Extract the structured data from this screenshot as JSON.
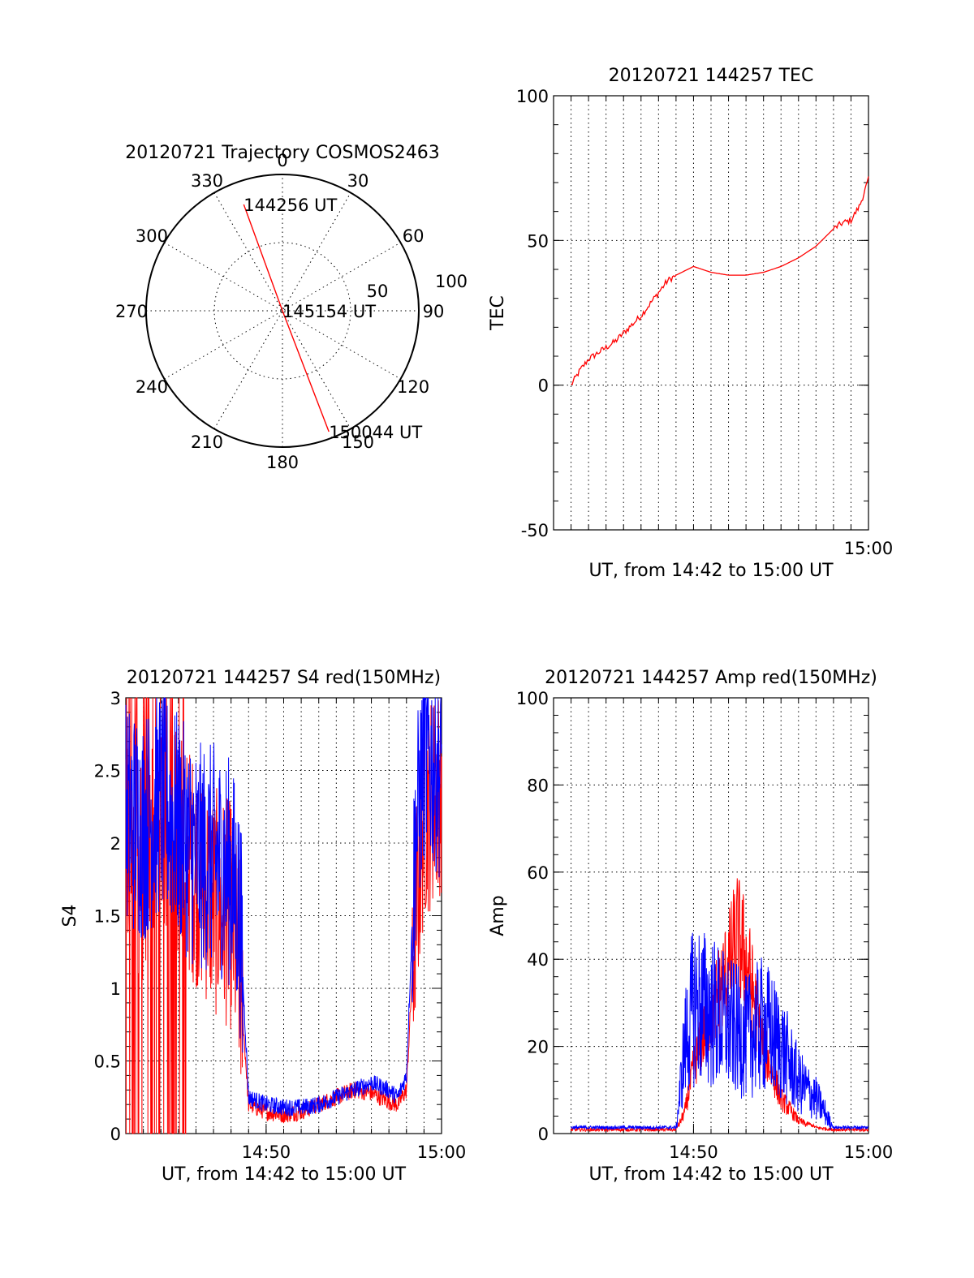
{
  "colors": {
    "red": "#ff0000",
    "blue": "#0000ff",
    "axis": "#000000"
  },
  "chart_data": [
    {
      "id": "trajectory",
      "type": "polar",
      "title": "20120721 Trajectory COSMOS2463",
      "angle_labels": [
        "0",
        "30",
        "60",
        "90",
        "120",
        "150",
        "180",
        "210",
        "240",
        "270",
        "300",
        "330"
      ],
      "radius_labels": [
        "50",
        "100"
      ],
      "rmax": 100,
      "track": {
        "color": "red",
        "points": [
          {
            "az": 340,
            "r": 83,
            "label": "144256 UT"
          },
          {
            "az": 0,
            "r": 0,
            "label": "145154 UT"
          },
          {
            "az": 159,
            "r": 95,
            "label": "150044 UT"
          }
        ]
      }
    },
    {
      "id": "tec",
      "type": "line",
      "title": "20120721 144257 TEC",
      "xlabel": "UT, from 14:42 to 15:00 UT",
      "ylabel": "TEC",
      "xlim": [
        "14:42",
        "15:00"
      ],
      "ylim": [
        -50,
        100
      ],
      "yticks": [
        "-50",
        "0",
        "50",
        "100"
      ],
      "xticks": [
        "15:00"
      ],
      "series": [
        {
          "color": "red",
          "x": [
            "14:43:00",
            "14:43:30",
            "14:44:00",
            "14:44:30",
            "14:45:00",
            "14:45:30",
            "14:46:00",
            "14:46:30",
            "14:47:00",
            "14:47:30",
            "14:48:00",
            "14:48:30",
            "14:49:00",
            "14:50:00",
            "14:51:00",
            "14:52:00",
            "14:53:00",
            "14:54:00",
            "14:55:00",
            "14:56:00",
            "14:57:00",
            "14:57:30",
            "14:58:00",
            "14:58:30",
            "14:59:00",
            "14:59:30",
            "15:00:00"
          ],
          "y": [
            0,
            5,
            9,
            11,
            13,
            15,
            18,
            21,
            24,
            28,
            32,
            36,
            38,
            41,
            39,
            38,
            38,
            39,
            41,
            44,
            48,
            51,
            54,
            56,
            57,
            62,
            71
          ]
        }
      ]
    },
    {
      "id": "s4",
      "type": "line",
      "title": "20120721 144257 S4 red(150MHz)",
      "xlabel": "UT, from 14:42 to 15:00 UT",
      "ylabel": "S4",
      "xlim": [
        "14:42",
        "15:00"
      ],
      "ylim": [
        0,
        3
      ],
      "yticks": [
        "0",
        "0.5",
        "1",
        "1.5",
        "2",
        "2.5",
        "3"
      ],
      "xticks": [
        "14:50",
        "15:00"
      ],
      "series": [
        {
          "color": "red",
          "x": [
            "14:42:00",
            "14:43:00",
            "14:44:00",
            "14:45:00",
            "14:46:00",
            "14:47:00",
            "14:48:00",
            "14:48:30",
            "14:49:00",
            "14:50:00",
            "14:51:00",
            "14:52:00",
            "14:53:00",
            "14:54:00",
            "14:55:00",
            "14:56:00",
            "14:57:00",
            "14:57:30",
            "14:58:00",
            "14:58:30",
            "14:59:00",
            "15:00:00"
          ],
          "y": [
            2.0,
            1.8,
            2.2,
            2.0,
            1.8,
            1.6,
            1.5,
            1.1,
            0.2,
            0.15,
            0.13,
            0.15,
            0.2,
            0.25,
            0.3,
            0.28,
            0.22,
            0.2,
            0.3,
            1.5,
            2.2,
            2.4
          ]
        },
        {
          "color": "blue",
          "x": [
            "14:42:00",
            "14:43:00",
            "14:44:00",
            "14:45:00",
            "14:46:00",
            "14:47:00",
            "14:48:00",
            "14:48:30",
            "14:49:00",
            "14:50:00",
            "14:51:00",
            "14:52:00",
            "14:53:00",
            "14:54:00",
            "14:55:00",
            "14:56:00",
            "14:57:00",
            "14:57:30",
            "14:58:00",
            "14:58:30",
            "14:59:00",
            "15:00:00"
          ],
          "y": [
            2.2,
            2.1,
            2.3,
            2.1,
            1.9,
            1.9,
            1.8,
            1.5,
            0.25,
            0.2,
            0.18,
            0.18,
            0.2,
            0.25,
            0.3,
            0.35,
            0.3,
            0.25,
            0.4,
            2.0,
            2.6,
            2.5
          ]
        }
      ]
    },
    {
      "id": "amp",
      "type": "line",
      "title": "20120721 144257 Amp red(150MHz)",
      "xlabel": "UT, from 14:42 to 15:00 UT",
      "ylabel": "Amp",
      "xlim": [
        "14:42",
        "15:00"
      ],
      "ylim": [
        0,
        100
      ],
      "yticks": [
        "0",
        "20",
        "40",
        "60",
        "80",
        "100"
      ],
      "xticks": [
        "14:50",
        "15:00"
      ],
      "series": [
        {
          "color": "red",
          "x": [
            "14:43:00",
            "14:45:00",
            "14:47:00",
            "14:49:00",
            "14:49:30",
            "14:50:00",
            "14:51:00",
            "14:52:00",
            "14:52:30",
            "14:53:00",
            "14:54:00",
            "14:55:00",
            "14:56:00",
            "14:57:00",
            "14:58:00",
            "15:00:00"
          ],
          "y": [
            0.5,
            0.5,
            0.5,
            0.5,
            5,
            15,
            28,
            38,
            45,
            40,
            20,
            8,
            3,
            1,
            0.5,
            0.5
          ]
        },
        {
          "color": "blue",
          "x": [
            "14:43:00",
            "14:45:00",
            "14:47:00",
            "14:49:00",
            "14:49:30",
            "14:50:00",
            "14:51:00",
            "14:52:00",
            "14:53:00",
            "14:54:00",
            "14:55:00",
            "14:56:00",
            "14:57:00",
            "14:57:30",
            "14:58:00",
            "15:00:00"
          ],
          "y": [
            1,
            1,
            1,
            1,
            20,
            30,
            28,
            25,
            22,
            25,
            20,
            12,
            8,
            5,
            1,
            1
          ]
        }
      ]
    }
  ]
}
